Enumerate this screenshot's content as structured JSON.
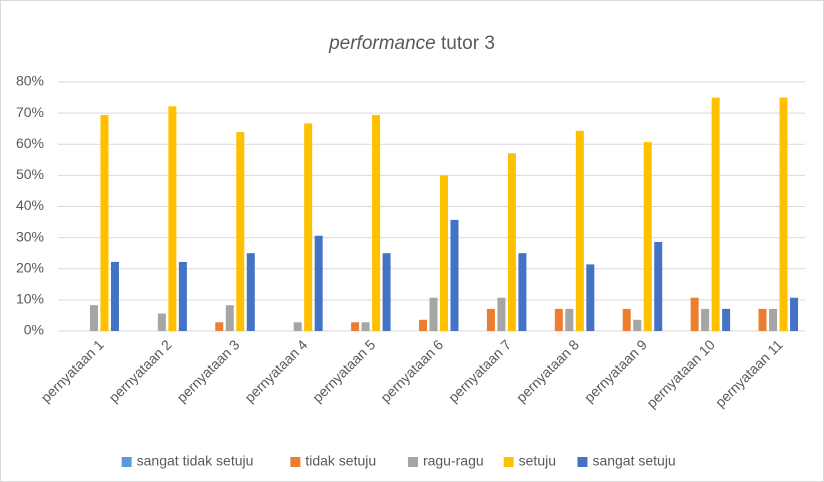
{
  "chart_data": {
    "type": "bar",
    "title": "performance tutor 3",
    "categories": [
      "pernyataan 1",
      "pernyataan 2",
      "pernyataan 3",
      "pernyataan 4",
      "pernyataan 5",
      "pernyataan 6",
      "pernyataan 7",
      "pernyataan 8",
      "pernyataan 9",
      "pernyataan 10",
      "pernyataan 11"
    ],
    "series": [
      {
        "name": "sangat tidak setuju",
        "color": "#5b9bd5",
        "values": [
          0,
          0,
          0,
          0,
          0,
          0,
          0,
          0,
          0,
          0,
          0
        ]
      },
      {
        "name": "tidak setuju",
        "color": "#ed7d31",
        "values": [
          0,
          0,
          2.8,
          0,
          2.8,
          3.6,
          7.1,
          7.1,
          7.1,
          10.7,
          7.1
        ]
      },
      {
        "name": "ragu-ragu",
        "color": "#a5a5a5",
        "values": [
          8.3,
          5.6,
          8.3,
          2.8,
          2.8,
          10.7,
          10.7,
          7.1,
          3.6,
          7.1,
          7.1
        ]
      },
      {
        "name": "setuju",
        "color": "#ffc000",
        "values": [
          69.4,
          72.2,
          63.9,
          66.7,
          69.4,
          50,
          57.1,
          64.3,
          60.7,
          75,
          75
        ]
      },
      {
        "name": "sangat setuju",
        "color": "#4472c4",
        "values": [
          22.2,
          22.2,
          25,
          30.6,
          25,
          35.7,
          25,
          21.4,
          28.6,
          7.1,
          10.7
        ]
      }
    ],
    "ylim": [
      0,
      80
    ],
    "yticks": [
      {
        "value": 0,
        "label": "0%"
      },
      {
        "value": 10,
        "label": "10%"
      },
      {
        "value": 20,
        "label": "20%"
      },
      {
        "value": 30,
        "label": "30%"
      },
      {
        "value": 40,
        "label": "40%"
      },
      {
        "value": 50,
        "label": "50%"
      },
      {
        "value": 60,
        "label": "60%"
      },
      {
        "value": 70,
        "label": "70%"
      },
      {
        "value": 80,
        "label": "80%"
      }
    ],
    "grid": true,
    "legend": "bottom"
  }
}
